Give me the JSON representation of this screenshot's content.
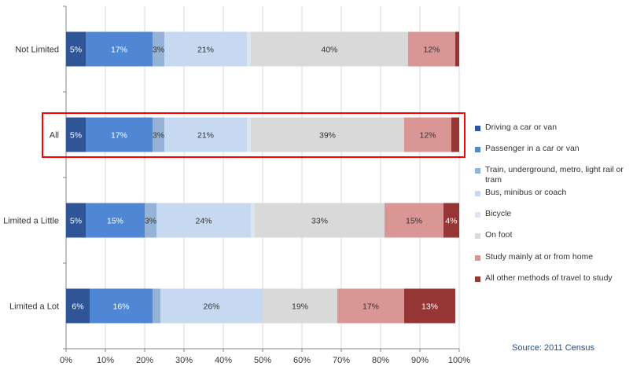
{
  "chart_data": {
    "type": "bar",
    "orientation": "horizontal",
    "stacked": true,
    "xlim": [
      0,
      100
    ],
    "x_ticks": [
      "0%",
      "10%",
      "20%",
      "30%",
      "40%",
      "50%",
      "60%",
      "70%",
      "80%",
      "90%",
      "100%"
    ],
    "grid": "vertical",
    "legend_position": "right",
    "categories": [
      "Not Limited",
      "All",
      "Limited a Little",
      "Limited a Lot"
    ],
    "highlighted_category": "All",
    "series": [
      {
        "name": "Driving a car or van",
        "color": "#2f5597",
        "values": [
          5,
          5,
          5,
          6
        ],
        "labels": [
          "5%",
          "5%",
          "5%",
          "6%"
        ]
      },
      {
        "name": "Passenger in a car or van",
        "color": "#4f87d4",
        "values": [
          17,
          17,
          15,
          16
        ],
        "labels": [
          "17%",
          "17%",
          "15%",
          "16%"
        ]
      },
      {
        "name": "Train, underground, metro, light rail or tram",
        "color": "#95b3d7",
        "values": [
          3,
          3,
          3,
          2
        ],
        "labels": [
          "3%",
          "3%",
          "3%",
          ""
        ]
      },
      {
        "name": "Bus, minibus or coach",
        "color": "#c6d9f1",
        "values": [
          21,
          21,
          24,
          26
        ],
        "labels": [
          "21%",
          "21%",
          "24%",
          "26%"
        ]
      },
      {
        "name": "Bicycle",
        "color": "#dce6f2",
        "values": [
          1,
          1,
          1,
          0
        ],
        "labels": [
          "",
          "",
          "",
          ""
        ]
      },
      {
        "name": "On foot",
        "color": "#d9d9d9",
        "values": [
          40,
          39,
          33,
          19
        ],
        "labels": [
          "40%",
          "39%",
          "33%",
          "19%"
        ]
      },
      {
        "name": "Study mainly at or from home",
        "color": "#da9694",
        "values": [
          12,
          12,
          15,
          17
        ],
        "labels": [
          "12%",
          "12%",
          "15%",
          "17%"
        ]
      },
      {
        "name": "All other methods of travel to study",
        "color": "#963634",
        "values": [
          1,
          2,
          4,
          13
        ],
        "labels": [
          "",
          "",
          "4%",
          "13%"
        ]
      }
    ]
  },
  "source": "Source: 2011 Census"
}
